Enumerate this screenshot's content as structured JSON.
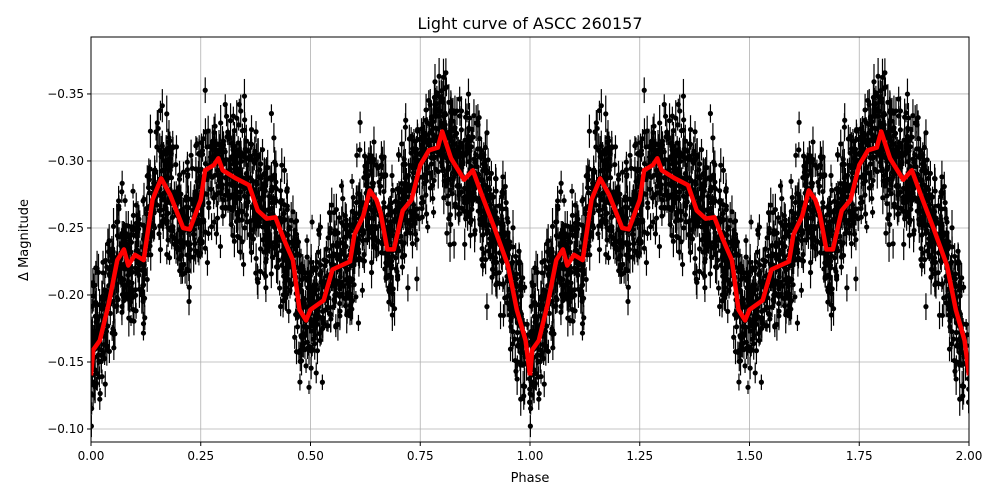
{
  "chart_data": {
    "type": "scatter",
    "title": "Light curve of ASCC 260157",
    "xlabel": "Phase",
    "ylabel": "Δ Magnitude",
    "xlim": [
      0,
      2
    ],
    "ylim": [
      -0.0903,
      -0.3925
    ],
    "y_inverted": true,
    "grid": true,
    "x_ticks": [
      "0.00",
      "0.25",
      "0.50",
      "0.75",
      "1.00",
      "1.25",
      "1.50",
      "1.75",
      "2.00"
    ],
    "x_tick_values": [
      0,
      0.25,
      0.5,
      0.75,
      1.0,
      1.25,
      1.5,
      1.75,
      2.0
    ],
    "y_ticks": [
      "−0.35",
      "−0.30",
      "−0.25",
      "−0.20",
      "−0.15",
      "−0.10"
    ],
    "y_tick_values": [
      -0.35,
      -0.3,
      -0.25,
      -0.2,
      -0.15,
      -0.1
    ],
    "points_color": "#000000",
    "model_color": "#ff0000",
    "model_curve": {
      "period_repeats": 2,
      "phase": [
        0.0,
        0.005,
        0.02,
        0.04,
        0.06,
        0.075,
        0.085,
        0.1,
        0.12,
        0.14,
        0.16,
        0.18,
        0.21,
        0.225,
        0.25,
        0.26,
        0.28,
        0.29,
        0.3,
        0.33,
        0.36,
        0.38,
        0.4,
        0.42,
        0.44,
        0.46,
        0.475,
        0.49,
        0.5,
        0.53,
        0.55,
        0.57,
        0.59,
        0.6,
        0.62,
        0.635,
        0.65,
        0.66,
        0.675,
        0.69,
        0.71,
        0.73,
        0.75,
        0.77,
        0.79,
        0.8,
        0.82,
        0.85,
        0.87,
        0.89,
        0.92,
        0.95,
        0.97,
        0.99,
        1.0
      ],
      "magnitude": [
        -0.14,
        -0.159,
        -0.166,
        -0.193,
        -0.226,
        -0.234,
        -0.222,
        -0.23,
        -0.226,
        -0.271,
        -0.287,
        -0.275,
        -0.25,
        -0.249,
        -0.271,
        -0.293,
        -0.297,
        -0.302,
        -0.293,
        -0.287,
        -0.282,
        -0.263,
        -0.257,
        -0.258,
        -0.241,
        -0.226,
        -0.189,
        -0.181,
        -0.189,
        -0.196,
        -0.219,
        -0.222,
        -0.225,
        -0.245,
        -0.259,
        -0.278,
        -0.271,
        -0.261,
        -0.234,
        -0.234,
        -0.263,
        -0.271,
        -0.297,
        -0.308,
        -0.31,
        -0.322,
        -0.302,
        -0.286,
        -0.293,
        -0.275,
        -0.249,
        -0.222,
        -0.189,
        -0.166,
        -0.14
      ]
    },
    "scatter_spread": 0.035
  }
}
